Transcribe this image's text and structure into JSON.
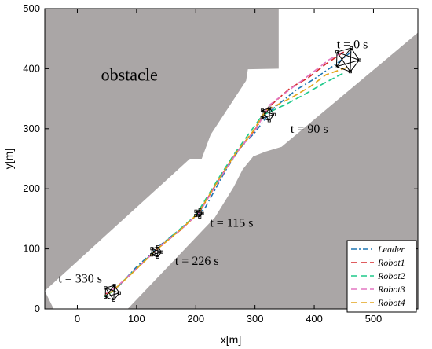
{
  "chart_data": {
    "type": "line",
    "title": "",
    "xlabel": "x[m]",
    "ylabel": "y[m]",
    "xlim": [
      -55,
      575
    ],
    "ylim": [
      0,
      500
    ],
    "xticks": [
      "0",
      "100",
      "200",
      "300",
      "400",
      "500"
    ],
    "xtick_values": [
      0,
      100,
      200,
      300,
      400,
      500
    ],
    "yticks": [
      "0",
      "100",
      "200",
      "300",
      "400",
      "500"
    ],
    "ytick_values": [
      0,
      100,
      200,
      300,
      400,
      500
    ],
    "grid": false,
    "legend_position": "bottom-right",
    "obstacle_label": "obstacle",
    "obstacle_label_pos": [
      40,
      380
    ],
    "colors": {
      "obstacle": "#aaa6a6",
      "formation": "#000000"
    },
    "obstacles": [
      [
        [
          -55,
          500
        ],
        [
          340,
          500
        ],
        [
          340,
          400
        ],
        [
          288,
          399
        ],
        [
          285,
          380
        ],
        [
          225,
          290
        ],
        [
          210,
          250
        ],
        [
          190,
          250
        ],
        [
          -55,
          30
        ]
      ],
      [
        [
          -55,
          30
        ],
        [
          -55,
          0
        ],
        [
          -40,
          0
        ]
      ],
      [
        [
          575,
          460
        ],
        [
          345,
          270
        ],
        [
          318,
          262
        ],
        [
          297,
          254
        ],
        [
          279,
          232
        ],
        [
          264,
          203
        ],
        [
          232,
          152
        ],
        [
          85,
          0
        ],
        [
          575,
          0
        ]
      ]
    ],
    "annotations": [
      {
        "text": "t = 0 s",
        "x": 438,
        "y": 434
      },
      {
        "text": "t = 90 s",
        "x": 360,
        "y": 293
      },
      {
        "text": "t = 115 s",
        "x": 224,
        "y": 137
      },
      {
        "text": "t = 226 s",
        "x": 165,
        "y": 73
      },
      {
        "text": "t = 330 s",
        "x": -32,
        "y": 44
      }
    ],
    "formations": [
      {
        "center": [
          455,
          415
        ],
        "size": 21
      },
      {
        "center": [
          321,
          324
        ],
        "size": 11
      },
      {
        "center": [
          205,
          159
        ],
        "size": 6
      },
      {
        "center": [
          133,
          95
        ],
        "size": 9
      },
      {
        "center": [
          58,
          27
        ],
        "size": 13
      }
    ],
    "series": [
      {
        "name": "Leader",
        "color": "#1f77b4",
        "dash": "7 3 2 3",
        "x": [
          462,
          440,
          400,
          370,
          330,
          300,
          275,
          250,
          215,
          180,
          140,
          100,
          70,
          60
        ],
        "y": [
          428,
          410,
          383,
          365,
          333,
          294,
          268,
          230,
          167,
          138,
          106,
          70,
          38,
          32
        ]
      },
      {
        "name": "Robot1",
        "color": "#d62728",
        "dash": "8 4",
        "x": [
          450,
          420,
          390,
          360,
          322,
          300,
          270,
          245,
          205,
          175,
          135,
          95,
          62,
          48
        ],
        "y": [
          428,
          408,
          385,
          368,
          335,
          298,
          262,
          225,
          160,
          132,
          100,
          62,
          32,
          25
        ]
      },
      {
        "name": "Robot2",
        "color": "#1ec98a",
        "dash": "8 4",
        "x": [
          448,
          415,
          385,
          355,
          312,
          290,
          265,
          240,
          200,
          170,
          130,
          90,
          58,
          45
        ],
        "y": [
          392,
          375,
          358,
          342,
          322,
          292,
          258,
          220,
          156,
          130,
          96,
          58,
          28,
          20
        ]
      },
      {
        "name": "Robot3",
        "color": "#e377c2",
        "dash": "8 4",
        "x": [
          447,
          425,
          395,
          368,
          325,
          302,
          272,
          247,
          207,
          177,
          137,
          97,
          63,
          50
        ],
        "y": [
          427,
          415,
          392,
          372,
          340,
          300,
          264,
          227,
          162,
          134,
          102,
          64,
          34,
          26
        ]
      },
      {
        "name": "Robot4",
        "color": "#e4a41b",
        "dash": "8 4",
        "x": [
          455,
          420,
          393,
          362,
          318,
          296,
          268,
          243,
          203,
          173,
          133,
          93,
          60,
          46
        ],
        "y": [
          402,
          390,
          370,
          352,
          330,
          295,
          260,
          222,
          158,
          131,
          98,
          60,
          30,
          22
        ]
      }
    ]
  }
}
